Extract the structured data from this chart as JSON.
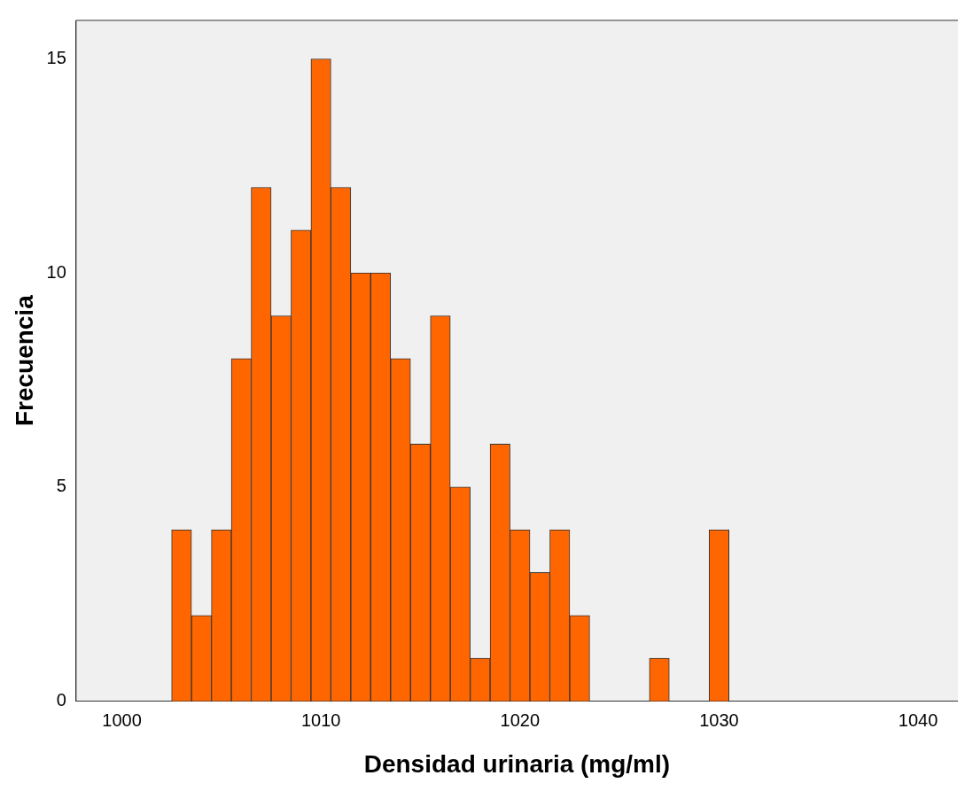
{
  "chart_data": {
    "type": "histogram",
    "xlabel": "Densidad urinaria (mg/ml)",
    "ylabel": "Frecuencia",
    "bins": [
      1002.5,
      1003.5,
      1004.5,
      1005.5,
      1006.5,
      1007.5,
      1008.5,
      1009.5,
      1010.5,
      1011.5,
      1012.5,
      1013.5,
      1014.5,
      1015.5,
      1016.5,
      1017.5,
      1018.5,
      1019.5,
      1020.5,
      1021.5,
      1022.5,
      1023.5,
      1024.5,
      1025.5,
      1026.5,
      1027.5,
      1028.5,
      1029.5,
      1030.5
    ],
    "values": [
      4,
      2,
      4,
      8,
      12,
      9,
      11,
      15,
      12,
      10,
      10,
      8,
      6,
      9,
      5,
      1,
      6,
      4,
      3,
      4,
      2,
      0,
      0,
      0,
      1,
      0,
      0,
      4
    ],
    "color": "#ff6600",
    "xlim": [
      997.7,
      1042
    ],
    "xticks": [
      1000,
      1010,
      1020,
      1030,
      1040
    ],
    "ylim": [
      0,
      15.9
    ],
    "yticks": [
      0,
      5,
      10,
      15
    ],
    "grid": false
  }
}
